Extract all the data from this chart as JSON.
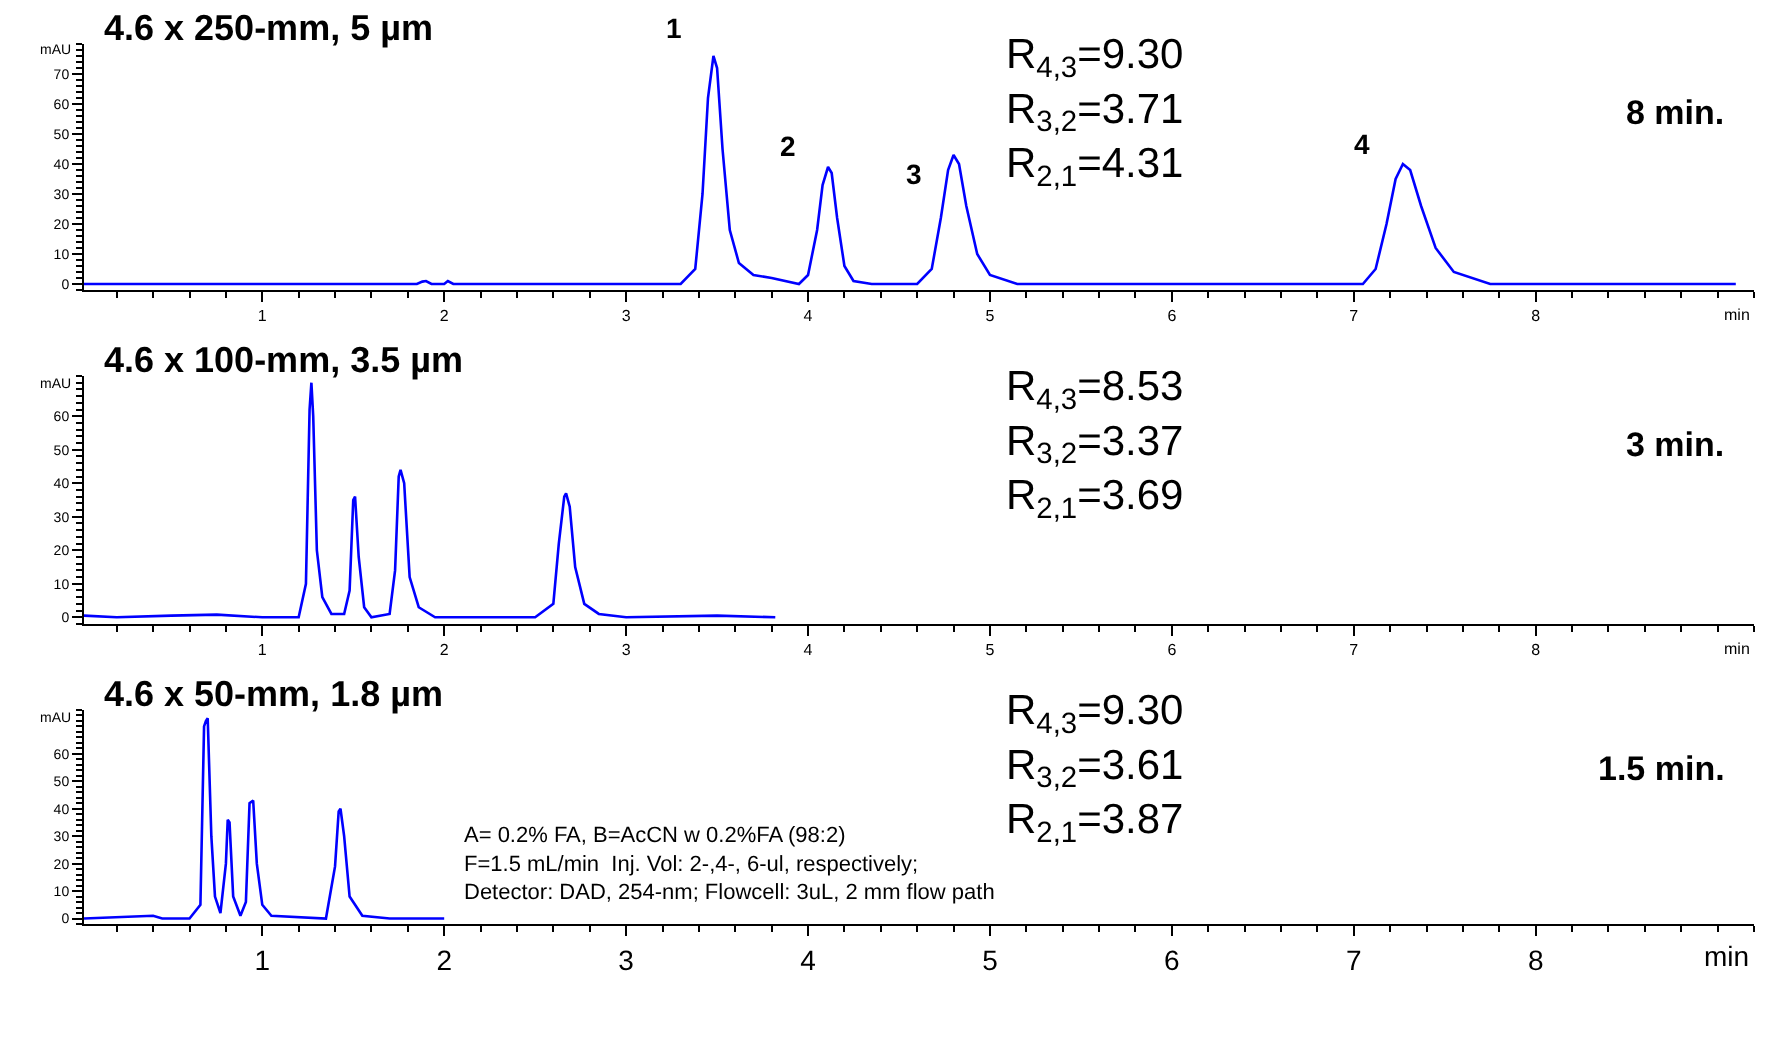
{
  "chart_data": [
    {
      "type": "line",
      "title": "4.6 x 250-mm, 5 µm",
      "xlabel": "min",
      "ylabel": "mAU",
      "marker": "none",
      "line_style": "solid",
      "xlim": [
        0.02,
        9.2
      ],
      "xticks": [
        1,
        2,
        3,
        4,
        5,
        6,
        7,
        8
      ],
      "ylim": [
        -2,
        80
      ],
      "yticks": [
        0,
        10,
        20,
        30,
        40,
        50,
        60,
        70
      ],
      "series": [
        {
          "color": "#0000ff",
          "x": [
            0.02,
            1.85,
            1.88,
            1.9,
            1.93,
            2.0,
            2.02,
            2.05,
            3.3,
            3.38,
            3.42,
            3.45,
            3.48,
            3.5,
            3.53,
            3.57,
            3.62,
            3.7,
            3.8,
            3.95,
            4.0,
            4.05,
            4.08,
            4.11,
            4.13,
            4.16,
            4.2,
            4.25,
            4.35,
            4.6,
            4.68,
            4.73,
            4.77,
            4.8,
            4.83,
            4.87,
            4.93,
            5.0,
            5.15,
            7.05,
            7.12,
            7.18,
            7.23,
            7.27,
            7.31,
            7.37,
            7.45,
            7.55,
            7.75,
            9.1
          ],
          "values": [
            0,
            0,
            0.8,
            1,
            0,
            0,
            1,
            0,
            0,
            5,
            30,
            62,
            76,
            72,
            45,
            18,
            7,
            3,
            2,
            0,
            3,
            18,
            33,
            39,
            37,
            22,
            6,
            1,
            0,
            0,
            5,
            22,
            38,
            43,
            40,
            26,
            10,
            3,
            0,
            0,
            5,
            20,
            35,
            40,
            38,
            26,
            12,
            4,
            0,
            0
          ]
        }
      ],
      "annotations": [
        "R$_{4,3}$=9.30\nR$_{3,2}$=3.71\nR$_{2,1}$=4.31",
        "8 min.",
        {
          "text": "1",
          "x": 3.48,
          "y": 76
        },
        {
          "text": "2",
          "x": 4.11,
          "y": 39
        },
        {
          "text": "3",
          "x": 4.8,
          "y": 43
        },
        {
          "text": "4",
          "x": 7.27,
          "y": 40
        }
      ]
    },
    {
      "type": "line",
      "title": "4.6 x 100-mm, 3.5 µm",
      "xlabel": "min",
      "ylabel": "mAU",
      "marker": "none",
      "line_style": "solid",
      "xlim": [
        0.02,
        9.2
      ],
      "xticks": [
        1,
        2,
        3,
        4,
        5,
        6,
        7,
        8
      ],
      "ylim": [
        -2,
        72
      ],
      "yticks": [
        0,
        10,
        20,
        30,
        40,
        50,
        60
      ],
      "series": [
        {
          "color": "#0000ff",
          "x": [
            0.02,
            0.2,
            0.5,
            0.75,
            1.0,
            1.2,
            1.24,
            1.26,
            1.27,
            1.28,
            1.3,
            1.33,
            1.38,
            1.45,
            1.48,
            1.5,
            1.51,
            1.53,
            1.56,
            1.6,
            1.7,
            1.73,
            1.75,
            1.76,
            1.78,
            1.81,
            1.86,
            1.95,
            2.5,
            2.6,
            2.63,
            2.66,
            2.67,
            2.69,
            2.72,
            2.77,
            2.85,
            3.0,
            3.5,
            3.82
          ],
          "values": [
            0.5,
            0,
            0.5,
            0.8,
            0,
            0,
            10,
            62,
            70,
            60,
            20,
            6,
            1,
            1,
            8,
            35,
            36,
            18,
            3,
            0,
            1,
            14,
            42,
            44,
            40,
            12,
            3,
            0,
            0,
            4,
            22,
            36,
            37,
            33,
            15,
            4,
            1,
            0,
            0.5,
            0
          ]
        }
      ],
      "annotations": [
        "R$_{4,3}$=8.53\nR$_{3,2}$=3.37\nR$_{2,1}$=3.69",
        "3 min."
      ]
    },
    {
      "type": "line",
      "title": "4.6 x 50-mm, 1.8 µm",
      "xlabel": "min",
      "ylabel": "mAU",
      "marker": "none",
      "line_style": "solid",
      "xlim": [
        0.02,
        9.2
      ],
      "xticks": [
        1,
        2,
        3,
        4,
        5,
        6,
        7,
        8
      ],
      "ylim": [
        -2,
        76
      ],
      "yticks": [
        0,
        10,
        20,
        30,
        40,
        50,
        60
      ],
      "series": [
        {
          "color": "#0000ff",
          "x": [
            0.02,
            0.4,
            0.45,
            0.6,
            0.66,
            0.68,
            0.69,
            0.7,
            0.72,
            0.74,
            0.77,
            0.8,
            0.81,
            0.82,
            0.84,
            0.88,
            0.91,
            0.93,
            0.95,
            0.97,
            1.0,
            1.05,
            1.35,
            1.4,
            1.42,
            1.43,
            1.45,
            1.48,
            1.55,
            1.7,
            2.0
          ],
          "values": [
            0,
            1,
            0,
            0,
            5,
            70,
            72,
            73,
            30,
            8,
            2,
            20,
            36,
            35,
            8,
            1,
            6,
            42,
            43,
            20,
            5,
            1,
            0,
            19,
            39,
            40,
            30,
            8,
            1,
            0,
            0
          ]
        }
      ],
      "annotations": [
        "R$_{4,3}$=9.30\nR$_{3,2}$=3.61\nR$_{2,1}$=3.87",
        "1.5 min.",
        "A= 0.2% FA, B=AcCN w 0.2%FA (98:2)\nF=1.5 mL/min  Inj. Vol: 2-,4-, 6-ul, respectively;\nDetector: DAD, 254-nm; Flowcell: 3uL, 2 mm flow path"
      ]
    }
  ]
}
